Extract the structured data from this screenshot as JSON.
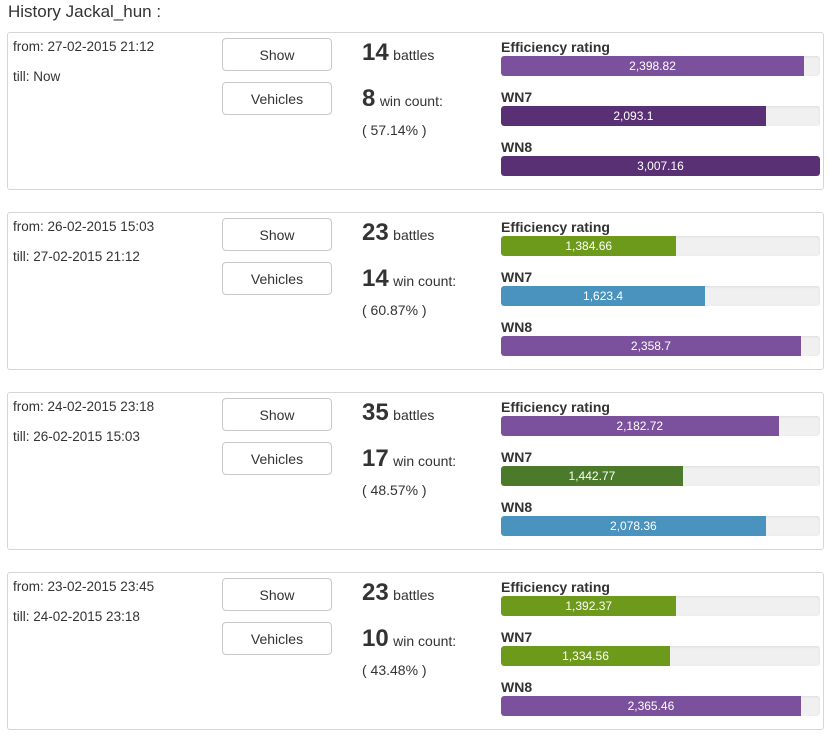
{
  "header": {
    "title": "History Jackal_hun :"
  },
  "labels": {
    "show": "Show",
    "vehicles": "Vehicles",
    "battles_unit": "battles",
    "wins_unit": "win count:"
  },
  "colors": {
    "purple": "#7b519d",
    "dark_purple": "#5a3074",
    "green": "#6e9a1c",
    "dark_green": "#4a7a2a",
    "blue": "#4a93bf",
    "track": "#f0f0f0"
  },
  "sessions": [
    {
      "from": "from: 27-02-2015 21:12",
      "till": "till: Now",
      "battles": "14",
      "wins": "8",
      "percent": "( 57.14% )",
      "ratings": [
        {
          "label": "Efficiency rating",
          "value": "2,398.82",
          "fill": 0.95,
          "color": "#7b519d"
        },
        {
          "label": "WN7",
          "value": "2,093.1",
          "fill": 0.83,
          "color": "#5a3074"
        },
        {
          "label": "WN8",
          "value": "3,007.16",
          "fill": 1.0,
          "color": "#5a3074"
        }
      ]
    },
    {
      "from": "from: 26-02-2015 15:03",
      "till": "till: 27-02-2015 21:12",
      "battles": "23",
      "wins": "14",
      "percent": "( 60.87% )",
      "ratings": [
        {
          "label": "Efficiency rating",
          "value": "1,384.66",
          "fill": 0.55,
          "color": "#6e9a1c"
        },
        {
          "label": "WN7",
          "value": "1,623.4",
          "fill": 0.64,
          "color": "#4a93bf"
        },
        {
          "label": "WN8",
          "value": "2,358.7",
          "fill": 0.94,
          "color": "#7b519d"
        }
      ]
    },
    {
      "from": "from: 24-02-2015 23:18",
      "till": "till: 26-02-2015 15:03",
      "battles": "35",
      "wins": "17",
      "percent": "( 48.57% )",
      "ratings": [
        {
          "label": "Efficiency rating",
          "value": "2,182.72",
          "fill": 0.87,
          "color": "#7b519d"
        },
        {
          "label": "WN7",
          "value": "1,442.77",
          "fill": 0.57,
          "color": "#4a7a2a"
        },
        {
          "label": "WN8",
          "value": "2,078.36",
          "fill": 0.83,
          "color": "#4a93bf"
        }
      ]
    },
    {
      "from": "from: 23-02-2015 23:45",
      "till": "till: 24-02-2015 23:18",
      "battles": "23",
      "wins": "10",
      "percent": "( 43.48% )",
      "ratings": [
        {
          "label": "Efficiency rating",
          "value": "1,392.37",
          "fill": 0.55,
          "color": "#6e9a1c"
        },
        {
          "label": "WN7",
          "value": "1,334.56",
          "fill": 0.53,
          "color": "#6e9a1c"
        },
        {
          "label": "WN8",
          "value": "2,365.46",
          "fill": 0.94,
          "color": "#7b519d"
        }
      ]
    }
  ]
}
